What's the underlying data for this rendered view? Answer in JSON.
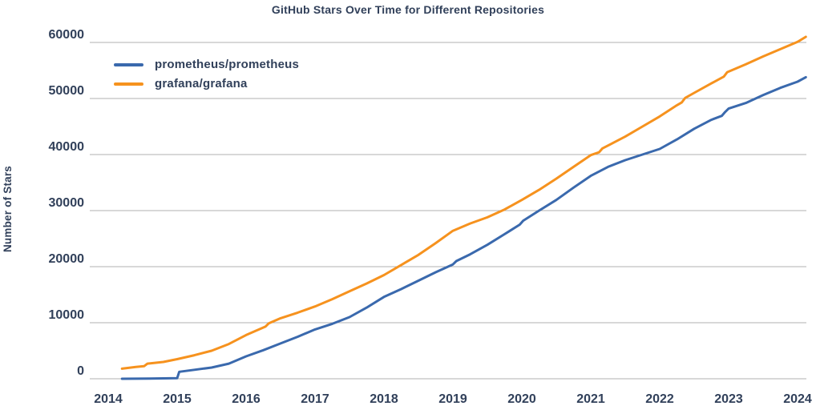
{
  "chart": {
    "title": "GitHub Stars Over Time for Different Repositories",
    "ylabel": "Number of Stars"
  },
  "chart_data": {
    "type": "line",
    "title": "GitHub Stars Over Time for Different Repositories",
    "xlabel": "",
    "ylabel": "Number of Stars",
    "xlim": [
      2014,
      2024.15
    ],
    "ylim": [
      0,
      60000
    ],
    "xticks": [
      2014,
      2015,
      2016,
      2017,
      2018,
      2019,
      2020,
      2021,
      2022,
      2023,
      2024
    ],
    "yticks": [
      0,
      10000,
      20000,
      30000,
      40000,
      50000,
      60000
    ],
    "grid": "horizontal",
    "grid_color": "#b0b0b0",
    "text_color": "#31405a",
    "background_color": "#ffffff",
    "legend_position": "upper-left",
    "series": [
      {
        "name": "prometheus/prometheus",
        "color": "#3a69ad",
        "points": [
          [
            2014.2,
            0
          ],
          [
            2014.4,
            20
          ],
          [
            2014.6,
            40
          ],
          [
            2014.8,
            70
          ],
          [
            2015.0,
            100
          ],
          [
            2015.03,
            1250
          ],
          [
            2015.25,
            1600
          ],
          [
            2015.5,
            2000
          ],
          [
            2015.75,
            2700
          ],
          [
            2016.0,
            4000
          ],
          [
            2016.25,
            5100
          ],
          [
            2016.5,
            6300
          ],
          [
            2016.75,
            7500
          ],
          [
            2017.0,
            8800
          ],
          [
            2017.25,
            9800
          ],
          [
            2017.5,
            11000
          ],
          [
            2017.75,
            12700
          ],
          [
            2018.0,
            14600
          ],
          [
            2018.25,
            16000
          ],
          [
            2018.5,
            17500
          ],
          [
            2018.75,
            19000
          ],
          [
            2019.0,
            20400
          ],
          [
            2019.05,
            21000
          ],
          [
            2019.25,
            22200
          ],
          [
            2019.5,
            23900
          ],
          [
            2019.75,
            25800
          ],
          [
            2019.97,
            27500
          ],
          [
            2020.02,
            28200
          ],
          [
            2020.25,
            30000
          ],
          [
            2020.5,
            31900
          ],
          [
            2020.75,
            34100
          ],
          [
            2021.0,
            36200
          ],
          [
            2021.25,
            37800
          ],
          [
            2021.5,
            39000
          ],
          [
            2021.75,
            40000
          ],
          [
            2022.0,
            41000
          ],
          [
            2022.25,
            42700
          ],
          [
            2022.5,
            44600
          ],
          [
            2022.75,
            46200
          ],
          [
            2022.9,
            46900
          ],
          [
            2022.95,
            47600
          ],
          [
            2023.0,
            48200
          ],
          [
            2023.25,
            49200
          ],
          [
            2023.5,
            50600
          ],
          [
            2023.75,
            51900
          ],
          [
            2024.0,
            53000
          ],
          [
            2024.12,
            53800
          ]
        ]
      },
      {
        "name": "grafana/grafana",
        "color": "#f6921e",
        "points": [
          [
            2014.2,
            1800
          ],
          [
            2014.4,
            2100
          ],
          [
            2014.52,
            2250
          ],
          [
            2014.57,
            2700
          ],
          [
            2014.8,
            3000
          ],
          [
            2015.0,
            3500
          ],
          [
            2015.25,
            4200
          ],
          [
            2015.5,
            5000
          ],
          [
            2015.75,
            6200
          ],
          [
            2016.0,
            7800
          ],
          [
            2016.28,
            9300
          ],
          [
            2016.33,
            9900
          ],
          [
            2016.5,
            10800
          ],
          [
            2016.75,
            11800
          ],
          [
            2017.0,
            12900
          ],
          [
            2017.25,
            14200
          ],
          [
            2017.5,
            15600
          ],
          [
            2017.75,
            17000
          ],
          [
            2018.0,
            18500
          ],
          [
            2018.25,
            20300
          ],
          [
            2018.5,
            22100
          ],
          [
            2018.75,
            24200
          ],
          [
            2019.0,
            26400
          ],
          [
            2019.25,
            27700
          ],
          [
            2019.5,
            28800
          ],
          [
            2019.75,
            30200
          ],
          [
            2020.0,
            31900
          ],
          [
            2020.25,
            33700
          ],
          [
            2020.5,
            35700
          ],
          [
            2020.75,
            37800
          ],
          [
            2021.0,
            39900
          ],
          [
            2021.12,
            40400
          ],
          [
            2021.17,
            41100
          ],
          [
            2021.5,
            43200
          ],
          [
            2021.75,
            45000
          ],
          [
            2022.0,
            46800
          ],
          [
            2022.25,
            48800
          ],
          [
            2022.32,
            49300
          ],
          [
            2022.37,
            50100
          ],
          [
            2022.5,
            51000
          ],
          [
            2022.75,
            52700
          ],
          [
            2022.93,
            53900
          ],
          [
            2022.98,
            54700
          ],
          [
            2023.25,
            56100
          ],
          [
            2023.5,
            57500
          ],
          [
            2023.75,
            58800
          ],
          [
            2024.0,
            60100
          ],
          [
            2024.12,
            61000
          ]
        ]
      }
    ]
  }
}
